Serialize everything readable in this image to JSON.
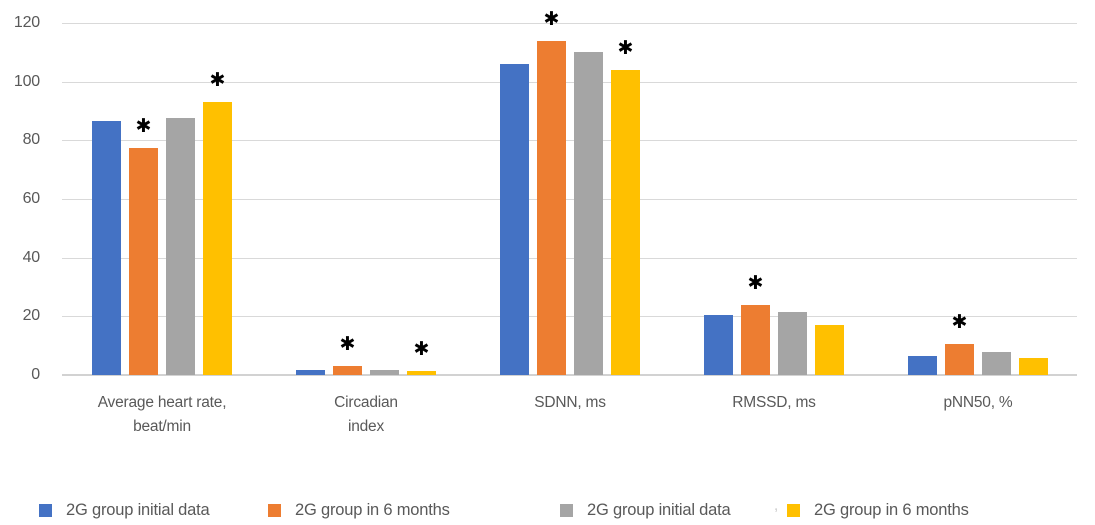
{
  "chart_data": {
    "type": "bar",
    "title": "",
    "xlabel": "",
    "ylabel": "",
    "categories": [
      "Average heart rate,\nbeat/min",
      "Circadian\nindex",
      "SDNN, ms",
      "RMSSD, ms",
      "pNN50, %"
    ],
    "series": [
      {
        "name": "2G group initial data",
        "color": "#4472C4",
        "values": [
          86.5,
          1.8,
          106,
          20.5,
          6.5
        ]
      },
      {
        "name": "2G group in 6 months",
        "color": "#ED7D31",
        "values": [
          77.4,
          3.0,
          114,
          24,
          10.5
        ]
      },
      {
        "name": "2G group initial data",
        "color": "#A5A5A5",
        "values": [
          87.5,
          1.7,
          110,
          21.5,
          7.8
        ]
      },
      {
        "name": "2G group in 6 months",
        "color": "#FFC000",
        "values": [
          93,
          1.2,
          104,
          17,
          5.8
        ]
      }
    ],
    "y_axis": {
      "min": 0,
      "max": 120,
      "step": 20,
      "ticks": [
        0,
        20,
        40,
        60,
        80,
        100,
        120
      ]
    },
    "grid": true,
    "legend_position": "bottom",
    "significance_marker": "✱",
    "significance": [
      {
        "group": 0,
        "series": 1
      },
      {
        "group": 0,
        "series": 3
      },
      {
        "group": 1,
        "series": 1
      },
      {
        "group": 1,
        "series": 3
      },
      {
        "group": 2,
        "series": 1
      },
      {
        "group": 2,
        "series": 3
      },
      {
        "group": 3,
        "series": 1
      },
      {
        "group": 4,
        "series": 1
      }
    ]
  },
  "legend": {
    "separator": ",",
    "items": [
      "2G group initial data",
      "2G group in 6 months",
      "2G group initial data",
      "2G group in 6 months"
    ]
  },
  "colors": {
    "grid": "#d9d9d9",
    "axis_text": "#595959",
    "marker": "#000000"
  }
}
